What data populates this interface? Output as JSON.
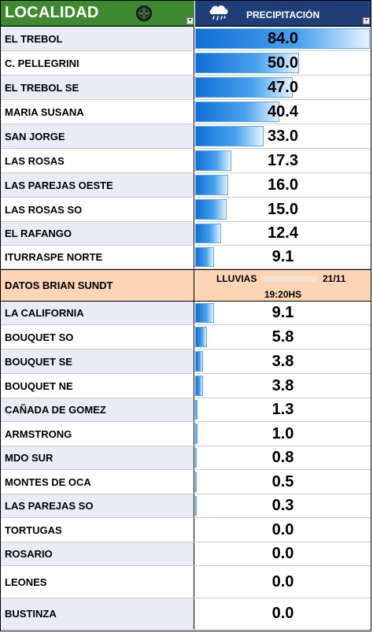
{
  "header": {
    "localidad_label": "LOCALIDAD",
    "precip_label": "PRECIPITACIÓN",
    "icons": {
      "left": "compass-rose-icon",
      "right": "rain-cloud-icon"
    }
  },
  "max_value": 84.0,
  "colors": {
    "header_green": "#3f8a2e",
    "header_navy": "#1f3e78",
    "bar_blue": "#1479dd",
    "datos_peach": "#fbd5b5"
  },
  "rows_top": [
    {
      "name": "EL TREBOL",
      "value": "84.0",
      "amount": 84.0
    },
    {
      "name": "C. PELLEGRINI",
      "value": "50.0",
      "amount": 50.0
    },
    {
      "name": " EL TREBOL SE",
      "value": "47.0",
      "amount": 47.0
    },
    {
      "name": "MARIA SUSANA",
      "value": "40.4",
      "amount": 40.4
    },
    {
      "name": "SAN JORGE",
      "value": "33.0",
      "amount": 33.0
    },
    {
      "name": "LAS ROSAS",
      "value": "17.3",
      "amount": 17.3
    },
    {
      "name": "LAS PAREJAS OESTE",
      "value": "16.0",
      "amount": 16.0
    },
    {
      "name": "LAS ROSAS SO",
      "value": "15.0",
      "amount": 15.0
    },
    {
      "name": "EL RAFANGO",
      "value": "12.4",
      "amount": 12.4
    },
    {
      "name": "ITURRASPE NORTE",
      "value": "9.1",
      "amount": 9.1
    }
  ],
  "datos": {
    "name": "DATOS BRIAN SUNDT",
    "line1": "LLUVIAS",
    "date": "21/11",
    "line2": "19:20HS"
  },
  "rows_bottom": [
    {
      "name": "LA CALIFORNIA",
      "value": "9.1",
      "amount": 9.1
    },
    {
      "name": "BOUQUET SO",
      "value": "5.8",
      "amount": 5.8
    },
    {
      "name": "BOUQUET SE",
      "value": "3.8",
      "amount": 3.8
    },
    {
      "name": "BOUQUET NE",
      "value": "3.8",
      "amount": 3.8
    },
    {
      "name": "CAÑADA DE GOMEZ",
      "value": "1.3",
      "amount": 1.3
    },
    {
      "name": "ARMSTRONG",
      "value": "1.0",
      "amount": 1.0
    },
    {
      "name": "MDO SUR",
      "value": "0.8",
      "amount": 0.8
    },
    {
      "name": "MONTES DE OCA",
      "value": "0.5",
      "amount": 0.5
    },
    {
      "name": "LAS PAREJAS SO",
      "value": "0.3",
      "amount": 0.3
    },
    {
      "name": "TORTUGAS",
      "value": "0.0",
      "amount": 0.0
    },
    {
      "name": "ROSARIO",
      "value": "0.0",
      "amount": 0.0
    },
    {
      "name": "LEONES",
      "value": "0.0",
      "amount": 0.0
    },
    {
      "name": "BUSTINZA",
      "value": "0.0",
      "amount": 0.0
    }
  ]
}
